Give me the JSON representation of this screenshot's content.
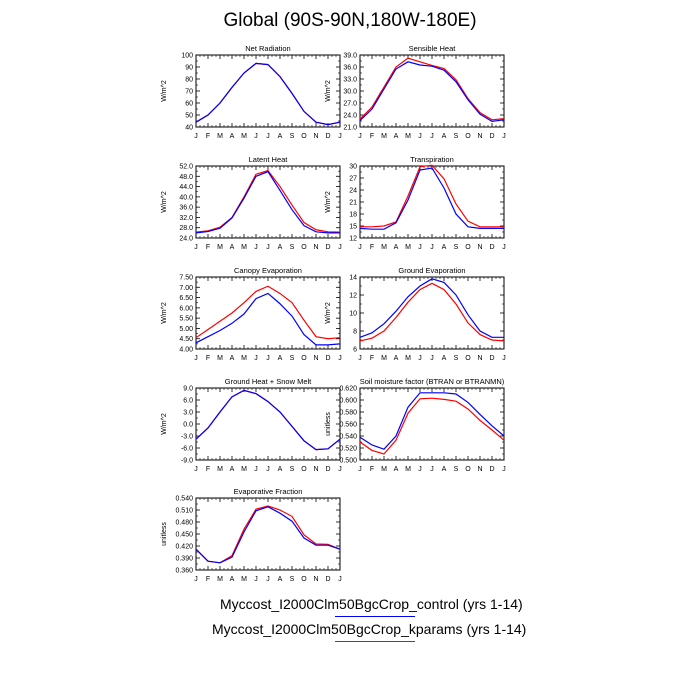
{
  "title": "Global (90S-90N,180W-180E)",
  "colors": {
    "control": "#0000ff",
    "kparams": "#ff0000"
  },
  "legend": {
    "control": "Myccost_I2000Clm50BgcCrop_control (yrs 1-14)",
    "kparams": "Myccost_I2000Clm50BgcCrop_kparams (yrs 1-14)"
  },
  "chart_data": [
    {
      "type": "line",
      "title": "Net Radiation",
      "xlabel": "",
      "ylabel": "W/m^2",
      "categories": [
        "J",
        "F",
        "M",
        "A",
        "M",
        "J",
        "J",
        "A",
        "S",
        "O",
        "N",
        "D",
        "J"
      ],
      "ylim": [
        40,
        100
      ],
      "yticks": [
        "40",
        "50",
        "60",
        "70",
        "80",
        "90",
        "100"
      ],
      "series": [
        {
          "name": "control",
          "values": [
            44,
            50,
            60,
            73,
            85,
            93,
            92,
            82,
            68,
            53,
            44,
            42,
            44
          ]
        },
        {
          "name": "kparams",
          "values": [
            44,
            50,
            60,
            73,
            85,
            93,
            92,
            82,
            68,
            53,
            44,
            42,
            44
          ]
        }
      ]
    },
    {
      "type": "line",
      "title": "Sensible Heat",
      "xlabel": "",
      "ylabel": "W/m^2",
      "categories": [
        "J",
        "F",
        "M",
        "A",
        "M",
        "J",
        "J",
        "A",
        "S",
        "O",
        "N",
        "D",
        "J"
      ],
      "ylim": [
        21,
        39
      ],
      "yticks": [
        "21.0",
        "24.0",
        "27.0",
        "30.0",
        "33.0",
        "36.0",
        "39.0"
      ],
      "series": [
        {
          "name": "control",
          "values": [
            22.6,
            25.5,
            30.5,
            35.5,
            37.3,
            36.5,
            36.2,
            35.2,
            32.3,
            27.8,
            24.2,
            22.4,
            22.8
          ]
        },
        {
          "name": "kparams",
          "values": [
            23.0,
            26.0,
            31.0,
            36.0,
            38.2,
            37.3,
            36.4,
            35.6,
            32.8,
            28.1,
            24.6,
            22.8,
            23.1
          ]
        }
      ]
    },
    {
      "type": "line",
      "title": "Latent Heat",
      "xlabel": "",
      "ylabel": "W/m^2",
      "categories": [
        "J",
        "F",
        "M",
        "A",
        "M",
        "J",
        "J",
        "A",
        "S",
        "O",
        "N",
        "D",
        "J"
      ],
      "ylim": [
        24,
        52
      ],
      "yticks": [
        "24.0",
        "28.0",
        "32.0",
        "36.0",
        "40.0",
        "44.0",
        "48.0",
        "52.0"
      ],
      "series": [
        {
          "name": "control",
          "values": [
            26.0,
            26.5,
            27.8,
            31.8,
            39.5,
            48.0,
            49.8,
            42.5,
            35.0,
            28.8,
            26.4,
            26.0,
            26.0
          ]
        },
        {
          "name": "kparams",
          "values": [
            26.3,
            26.8,
            28.2,
            32.0,
            40.0,
            48.8,
            50.2,
            44.0,
            36.8,
            30.0,
            27.2,
            26.4,
            26.3
          ]
        }
      ]
    },
    {
      "type": "line",
      "title": "Transpiration",
      "xlabel": "",
      "ylabel": "W/m^2",
      "categories": [
        "J",
        "F",
        "M",
        "A",
        "M",
        "J",
        "J",
        "A",
        "S",
        "O",
        "N",
        "D",
        "J"
      ],
      "ylim": [
        12,
        30
      ],
      "yticks": [
        "12",
        "15",
        "18",
        "21",
        "24",
        "27",
        "30"
      ],
      "series": [
        {
          "name": "control",
          "values": [
            14.4,
            14.2,
            14.2,
            15.8,
            21.5,
            29.0,
            29.5,
            24.5,
            18.0,
            14.8,
            14.4,
            14.4,
            14.4
          ]
        },
        {
          "name": "kparams",
          "values": [
            14.8,
            14.8,
            15.0,
            16.0,
            22.5,
            29.8,
            30.2,
            26.8,
            20.5,
            16.2,
            14.8,
            14.8,
            14.8
          ]
        }
      ]
    },
    {
      "type": "line",
      "title": "Canopy Evaporation",
      "xlabel": "",
      "ylabel": "W/m^2",
      "categories": [
        "J",
        "F",
        "M",
        "A",
        "M",
        "J",
        "J",
        "A",
        "S",
        "O",
        "N",
        "D",
        "J"
      ],
      "ylim": [
        4.0,
        7.5
      ],
      "yticks": [
        "4.00",
        "4.50",
        "5.00",
        "5.50",
        "6.00",
        "6.50",
        "7.00",
        "7.50"
      ],
      "series": [
        {
          "name": "control",
          "values": [
            4.3,
            4.6,
            4.9,
            5.25,
            5.7,
            6.45,
            6.7,
            6.2,
            5.6,
            4.7,
            4.2,
            4.2,
            4.25
          ]
        },
        {
          "name": "kparams",
          "values": [
            4.55,
            4.95,
            5.35,
            5.75,
            6.25,
            6.8,
            7.05,
            6.7,
            6.25,
            5.4,
            4.6,
            4.5,
            4.55
          ]
        }
      ]
    },
    {
      "type": "line",
      "title": "Ground Evaporation",
      "xlabel": "",
      "ylabel": "W/m^2",
      "categories": [
        "J",
        "F",
        "M",
        "A",
        "M",
        "J",
        "J",
        "A",
        "S",
        "O",
        "N",
        "D",
        "J"
      ],
      "ylim": [
        6,
        14
      ],
      "yticks": [
        "6",
        "8",
        "10",
        "12",
        "14"
      ],
      "series": [
        {
          "name": "control",
          "values": [
            7.3,
            7.8,
            8.8,
            10.2,
            11.8,
            13.0,
            13.8,
            13.4,
            12.0,
            9.8,
            8.0,
            7.3,
            7.3
          ]
        },
        {
          "name": "kparams",
          "values": [
            6.9,
            7.2,
            8.0,
            9.5,
            11.2,
            12.6,
            13.3,
            12.6,
            11.0,
            8.9,
            7.6,
            7.0,
            6.9
          ]
        }
      ]
    },
    {
      "type": "line",
      "title": "Ground Heat + Snow Melt",
      "xlabel": "",
      "ylabel": "W/m^2",
      "categories": [
        "J",
        "F",
        "M",
        "A",
        "M",
        "J",
        "J",
        "A",
        "S",
        "O",
        "N",
        "D",
        "J"
      ],
      "ylim": [
        -9,
        9
      ],
      "yticks": [
        "-9.0",
        "-6.0",
        "-3.0",
        "0.0",
        "3.0",
        "6.0",
        "9.0"
      ],
      "series": [
        {
          "name": "control",
          "values": [
            -3.8,
            -1.0,
            3.0,
            6.8,
            8.4,
            7.6,
            5.6,
            3.0,
            -0.6,
            -4.2,
            -6.4,
            -6.2,
            -3.8
          ]
        },
        {
          "name": "kparams",
          "values": [
            -3.8,
            -1.0,
            3.0,
            6.8,
            8.4,
            7.6,
            5.6,
            3.0,
            -0.6,
            -4.2,
            -6.4,
            -6.2,
            -3.8
          ]
        }
      ]
    },
    {
      "type": "line",
      "title": "Soil moisture factor (BTRAN or BTRANMN)",
      "xlabel": "",
      "ylabel": "unitless",
      "categories": [
        "J",
        "F",
        "M",
        "A",
        "M",
        "J",
        "J",
        "A",
        "S",
        "O",
        "N",
        "D",
        "J"
      ],
      "ylim": [
        0.5,
        0.62
      ],
      "yticks": [
        "0.500",
        "0.520",
        "0.540",
        "0.560",
        "0.580",
        "0.600",
        "0.620"
      ],
      "series": [
        {
          "name": "control",
          "values": [
            0.538,
            0.525,
            0.518,
            0.54,
            0.588,
            0.612,
            0.612,
            0.612,
            0.61,
            0.596,
            0.576,
            0.557,
            0.54
          ]
        },
        {
          "name": "kparams",
          "values": [
            0.53,
            0.516,
            0.51,
            0.533,
            0.578,
            0.602,
            0.603,
            0.601,
            0.598,
            0.585,
            0.566,
            0.55,
            0.533
          ]
        }
      ]
    },
    {
      "type": "line",
      "title": "Evaporative Fraction",
      "xlabel": "",
      "ylabel": "unitless",
      "categories": [
        "J",
        "F",
        "M",
        "A",
        "M",
        "J",
        "J",
        "A",
        "S",
        "O",
        "N",
        "D",
        "J"
      ],
      "ylim": [
        0.36,
        0.54
      ],
      "yticks": [
        "0.360",
        "0.390",
        "0.420",
        "0.450",
        "0.480",
        "0.510",
        "0.540"
      ],
      "series": [
        {
          "name": "control",
          "values": [
            0.412,
            0.382,
            0.378,
            0.392,
            0.455,
            0.508,
            0.518,
            0.502,
            0.482,
            0.44,
            0.422,
            0.422,
            0.412
          ]
        },
        {
          "name": "kparams",
          "values": [
            0.412,
            0.382,
            0.378,
            0.396,
            0.462,
            0.512,
            0.52,
            0.51,
            0.494,
            0.448,
            0.425,
            0.424,
            0.412
          ]
        }
      ]
    }
  ]
}
